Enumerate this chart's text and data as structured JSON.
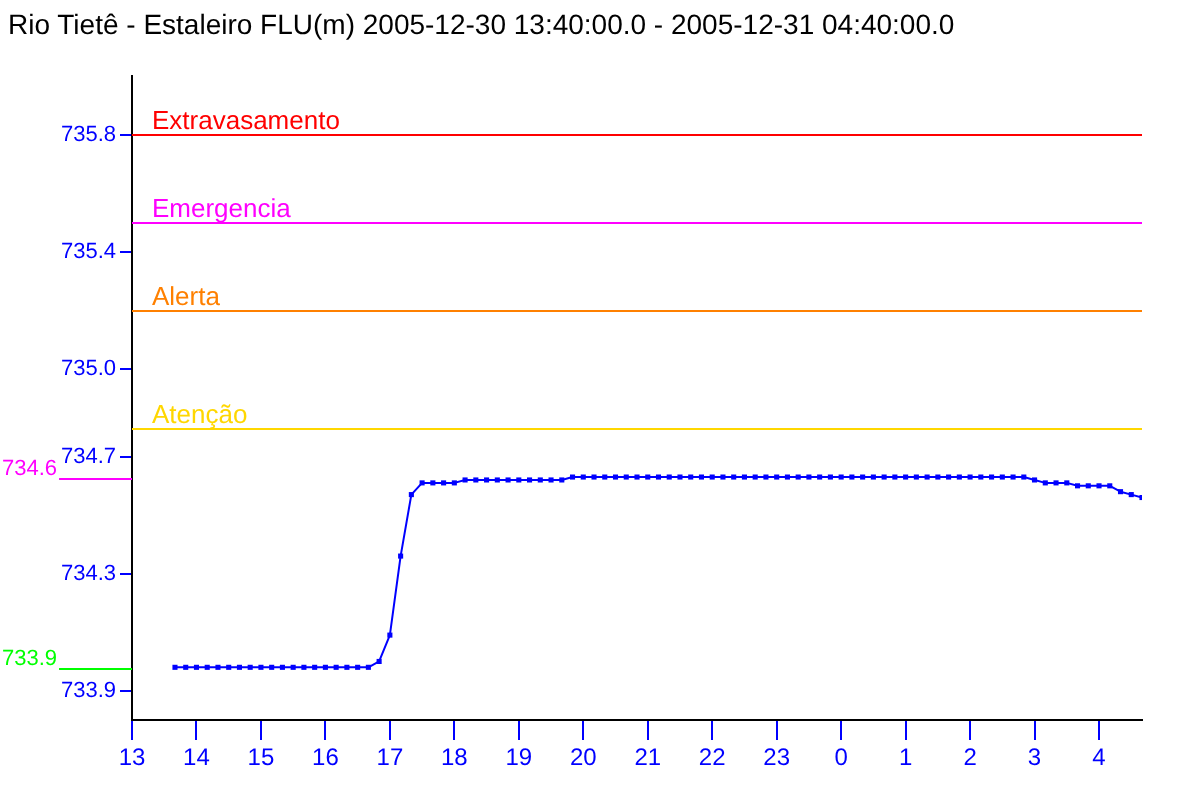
{
  "chart_data": {
    "type": "line",
    "title": "Rio Tietê - Estaleiro FLU(m) 2005-12-30 13:40:00.0 - 2005-12-31 04:40:00.0",
    "x": [
      "2005-12-30T13:40",
      "2005-12-30T13:50",
      "2005-12-30T14:00",
      "2005-12-30T14:10",
      "2005-12-30T14:20",
      "2005-12-30T14:30",
      "2005-12-30T14:40",
      "2005-12-30T14:50",
      "2005-12-30T15:00",
      "2005-12-30T15:10",
      "2005-12-30T15:20",
      "2005-12-30T15:30",
      "2005-12-30T15:40",
      "2005-12-30T15:50",
      "2005-12-30T16:00",
      "2005-12-30T16:10",
      "2005-12-30T16:20",
      "2005-12-30T16:30",
      "2005-12-30T16:40",
      "2005-12-30T16:50",
      "2005-12-30T17:00",
      "2005-12-30T17:10",
      "2005-12-30T17:20",
      "2005-12-30T17:30",
      "2005-12-30T17:40",
      "2005-12-30T17:50",
      "2005-12-30T18:00",
      "2005-12-30T18:10",
      "2005-12-30T18:20",
      "2005-12-30T18:30",
      "2005-12-30T18:40",
      "2005-12-30T18:50",
      "2005-12-30T19:00",
      "2005-12-30T19:10",
      "2005-12-30T19:20",
      "2005-12-30T19:30",
      "2005-12-30T19:40",
      "2005-12-30T19:50",
      "2005-12-30T20:00",
      "2005-12-30T20:10",
      "2005-12-30T20:20",
      "2005-12-30T20:30",
      "2005-12-30T20:40",
      "2005-12-30T20:50",
      "2005-12-30T21:00",
      "2005-12-30T21:10",
      "2005-12-30T21:20",
      "2005-12-30T21:30",
      "2005-12-30T21:40",
      "2005-12-30T21:50",
      "2005-12-30T22:00",
      "2005-12-30T22:10",
      "2005-12-30T22:20",
      "2005-12-30T22:30",
      "2005-12-30T22:40",
      "2005-12-30T22:50",
      "2005-12-30T23:00",
      "2005-12-30T23:10",
      "2005-12-30T23:20",
      "2005-12-30T23:30",
      "2005-12-30T23:40",
      "2005-12-30T23:50",
      "2005-12-31T00:00",
      "2005-12-31T00:10",
      "2005-12-31T00:20",
      "2005-12-31T00:30",
      "2005-12-31T00:40",
      "2005-12-31T00:50",
      "2005-12-31T01:00",
      "2005-12-31T01:10",
      "2005-12-31T01:20",
      "2005-12-31T01:30",
      "2005-12-31T01:40",
      "2005-12-31T01:50",
      "2005-12-31T02:00",
      "2005-12-31T02:10",
      "2005-12-31T02:20",
      "2005-12-31T02:30",
      "2005-12-31T02:40",
      "2005-12-31T02:50",
      "2005-12-31T03:00",
      "2005-12-31T03:10",
      "2005-12-31T03:20",
      "2005-12-31T03:30",
      "2005-12-31T03:40",
      "2005-12-31T03:50",
      "2005-12-31T04:00",
      "2005-12-31T04:10",
      "2005-12-31T04:20",
      "2005-12-31T04:30",
      "2005-12-31T04:40"
    ],
    "series": [
      {
        "color": "#0000ff",
        "values": [
          733.98,
          733.98,
          733.98,
          733.98,
          733.98,
          733.98,
          733.98,
          733.98,
          733.98,
          733.98,
          733.98,
          733.98,
          733.98,
          733.98,
          733.98,
          733.98,
          733.98,
          733.98,
          733.98,
          734.0,
          734.09,
          734.36,
          734.57,
          734.61,
          734.61,
          734.61,
          734.61,
          734.62,
          734.62,
          734.62,
          734.62,
          734.62,
          734.62,
          734.62,
          734.62,
          734.62,
          734.62,
          734.63,
          734.63,
          734.63,
          734.63,
          734.63,
          734.63,
          734.63,
          734.63,
          734.63,
          734.63,
          734.63,
          734.63,
          734.63,
          734.63,
          734.63,
          734.63,
          734.63,
          734.63,
          734.63,
          734.63,
          734.63,
          734.63,
          734.63,
          734.63,
          734.63,
          734.63,
          734.63,
          734.63,
          734.63,
          734.63,
          734.63,
          734.63,
          734.63,
          734.63,
          734.63,
          734.63,
          734.63,
          734.63,
          734.63,
          734.63,
          734.63,
          734.63,
          734.63,
          734.62,
          734.61,
          734.61,
          734.61,
          734.6,
          734.6,
          734.6,
          734.6,
          734.58,
          734.57,
          734.56
        ]
      }
    ],
    "xlim": [
      "2005-12-30T13:00",
      "2005-12-31T04:40"
    ],
    "xticks": [
      {
        "value": "2005-12-30T13:00",
        "label": "13"
      },
      {
        "value": "2005-12-30T14:00",
        "label": "14"
      },
      {
        "value": "2005-12-30T15:00",
        "label": "15"
      },
      {
        "value": "2005-12-30T16:00",
        "label": "16"
      },
      {
        "value": "2005-12-30T17:00",
        "label": "17"
      },
      {
        "value": "2005-12-30T18:00",
        "label": "18"
      },
      {
        "value": "2005-12-30T19:00",
        "label": "19"
      },
      {
        "value": "2005-12-30T20:00",
        "label": "20"
      },
      {
        "value": "2005-12-30T21:00",
        "label": "21"
      },
      {
        "value": "2005-12-30T22:00",
        "label": "22"
      },
      {
        "value": "2005-12-30T23:00",
        "label": "23"
      },
      {
        "value": "2005-12-31T00:00",
        "label": "0"
      },
      {
        "value": "2005-12-31T01:00",
        "label": "1"
      },
      {
        "value": "2005-12-31T02:00",
        "label": "2"
      },
      {
        "value": "2005-12-31T03:00",
        "label": "3"
      },
      {
        "value": "2005-12-31T04:00",
        "label": "4"
      }
    ],
    "ylim": [
      733.8,
      736.0
    ],
    "yticks": [
      733.9,
      734.3,
      734.7,
      {
        "value": 735.0,
        "label": "735.0"
      },
      735.4,
      735.8
    ],
    "ref_lines": [
      {
        "axis": "y",
        "value": 735.8,
        "label": "Extravasamento",
        "color": "#ff0000"
      },
      {
        "axis": "y",
        "value": 735.5,
        "label": "Emergencia",
        "color": "#ff00ff"
      },
      {
        "axis": "y",
        "value": 735.2,
        "label": "Alerta",
        "color": "#ff8000"
      },
      {
        "axis": "y",
        "value": 734.8,
        "label": "Atenção",
        "color": "#ffd700"
      }
    ],
    "annotations": [
      "734.6",
      "733.9"
    ],
    "grid": false,
    "legend": false,
    "marker": "square",
    "line_style": "solid"
  }
}
